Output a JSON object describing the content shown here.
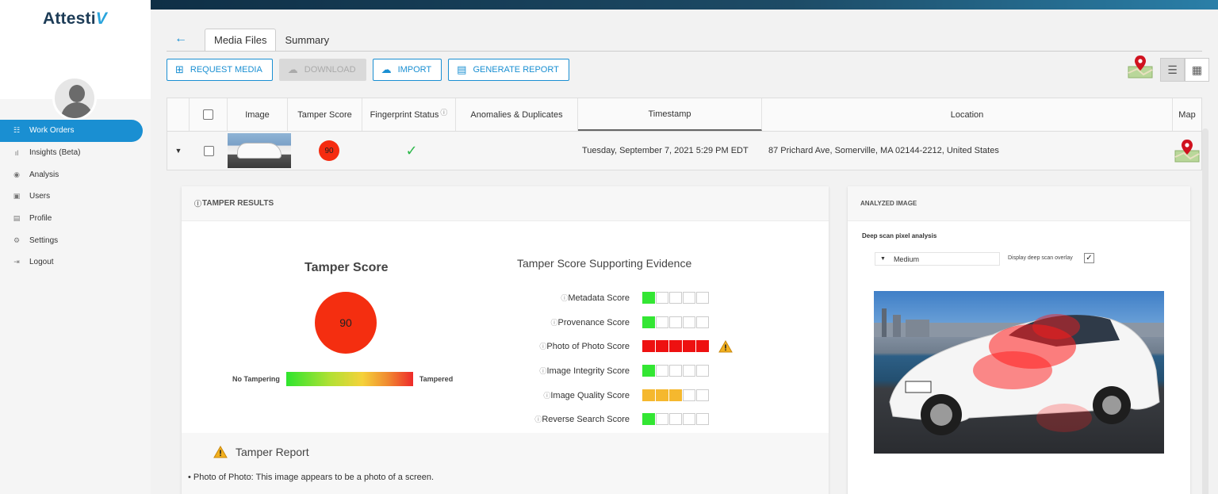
{
  "app": {
    "logo": "Attesti",
    "logo_accent": "V"
  },
  "sidebar": {
    "items": [
      {
        "label": "Work Orders",
        "icon": "work-orders-icon",
        "glyph": "☷",
        "active": true
      },
      {
        "label": "Insights (Beta)",
        "icon": "insights-icon",
        "glyph": "ıl",
        "active": false
      },
      {
        "label": "Analysis",
        "icon": "analysis-icon",
        "glyph": "◉",
        "active": false
      },
      {
        "label": "Users",
        "icon": "users-icon",
        "glyph": "▣",
        "active": false
      },
      {
        "label": "Profile",
        "icon": "profile-icon",
        "glyph": "▤",
        "active": false
      },
      {
        "label": "Settings",
        "icon": "settings-icon",
        "glyph": "⚙",
        "active": false
      },
      {
        "label": "Logout",
        "icon": "logout-icon",
        "glyph": "⇥",
        "active": false
      }
    ]
  },
  "tabs": [
    {
      "label": "Media Files",
      "active": true
    },
    {
      "label": "Summary",
      "active": false
    }
  ],
  "toolbar": {
    "request_media": "REQUEST MEDIA",
    "download": "DOWNLOAD",
    "import": "IMPORT",
    "generate_report": "GENERATE REPORT"
  },
  "table": {
    "headers": {
      "image": "Image",
      "tamper_score": "Tamper Score",
      "fingerprint_status": "Fingerprint Status",
      "anomalies": "Anomalies & Duplicates",
      "timestamp": "Timestamp",
      "location": "Location",
      "map": "Map"
    },
    "rows": [
      {
        "tamper_score": "90",
        "timestamp": "Tuesday, September 7, 2021 5:29 PM EDT",
        "location": "87 Prichard Ave, Somerville, MA 02144-2212, United States"
      }
    ]
  },
  "tamper_results": {
    "header": "TAMPER RESULTS",
    "title": "Tamper Score",
    "score": "90",
    "scale_low": "No Tampering",
    "scale_high": "Tampered",
    "evidence_title": "Tamper Score Supporting Evidence",
    "evidence": [
      {
        "label": "Metadata Score",
        "filled": 1,
        "color": "#33e633",
        "warning": false
      },
      {
        "label": "Provenance Score",
        "filled": 1,
        "color": "#33e633",
        "warning": false
      },
      {
        "label": "Photo of Photo Score",
        "filled": 5,
        "color": "#ee1111",
        "warning": true
      },
      {
        "label": "Image Integrity Score",
        "filled": 1,
        "color": "#33e633",
        "warning": false
      },
      {
        "label": "Image Quality Score",
        "filled": 3,
        "color": "#f5b82e",
        "warning": false
      },
      {
        "label": "Reverse Search Score",
        "filled": 1,
        "color": "#33e633",
        "warning": false
      }
    ],
    "report_title": "Tamper Report",
    "report_text": "• Photo of Photo: This image appears to be a photo of a screen."
  },
  "analyzed_image": {
    "header": "ANALYZED IMAGE",
    "deep_scan_label": "Deep scan pixel analysis",
    "select_value": "Medium",
    "overlay_label": "Display deep scan overlay",
    "overlay_checked": "✓"
  },
  "colors": {
    "accent": "#1a8fd2",
    "score_red": "#f42e10",
    "fingerprint_green": "#2cb84a"
  }
}
